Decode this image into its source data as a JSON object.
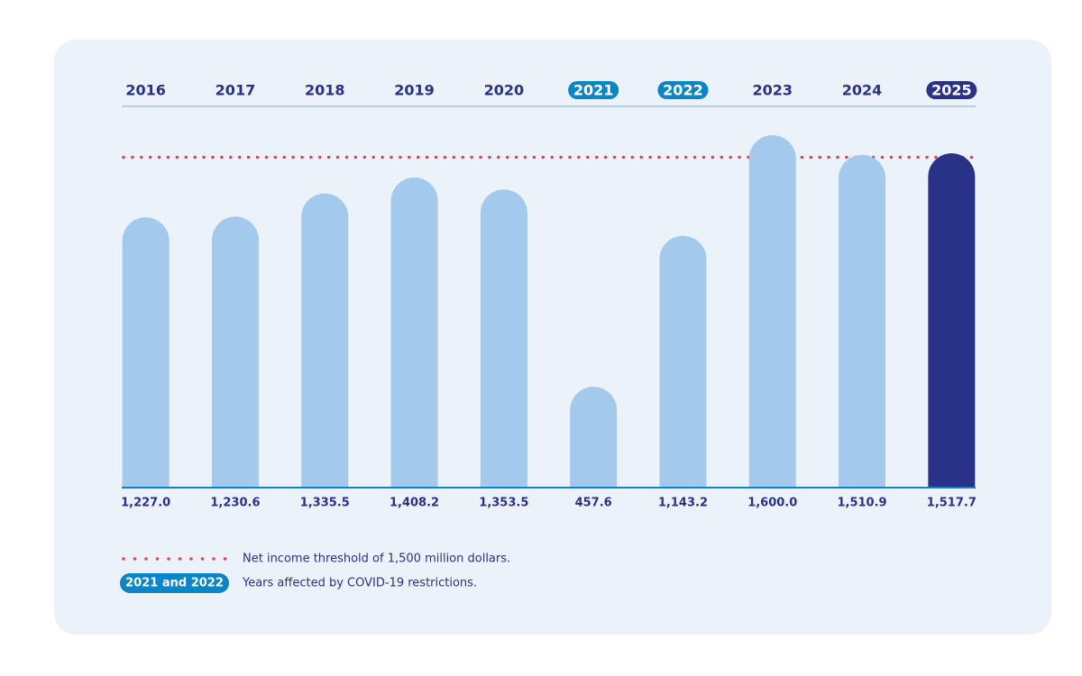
{
  "chart_data": {
    "type": "bar",
    "categories": [
      "2016",
      "2017",
      "2018",
      "2019",
      "2020",
      "2021",
      "2022",
      "2023",
      "2024",
      "2025"
    ],
    "values": [
      1227.0,
      1230.6,
      1335.5,
      1408.2,
      1353.5,
      457.6,
      1143.2,
      1600.0,
      1510.9,
      1517.7
    ],
    "value_labels": [
      "1,227.0",
      "1,230.6",
      "1,335.5",
      "1,408.2",
      "1,353.5",
      "457.6",
      "1,143.2",
      "1,600.0",
      "1,510.9",
      "1,517.7"
    ],
    "category_styles": [
      "plain",
      "plain",
      "plain",
      "plain",
      "plain",
      "covid",
      "covid",
      "plain",
      "plain",
      "current"
    ],
    "color": "#a3c9ec",
    "current_color": "#2a3288",
    "covid_color": "#0a86c8",
    "ylim": [
      0,
      1600
    ],
    "threshold": {
      "value": 1500,
      "label": "Net income threshold of 1,500 million dollars.",
      "color": "#e8414a"
    },
    "covid_legend": {
      "label": "2021 and 2022",
      "description": "Years affected by COVID-19 restrictions."
    }
  }
}
